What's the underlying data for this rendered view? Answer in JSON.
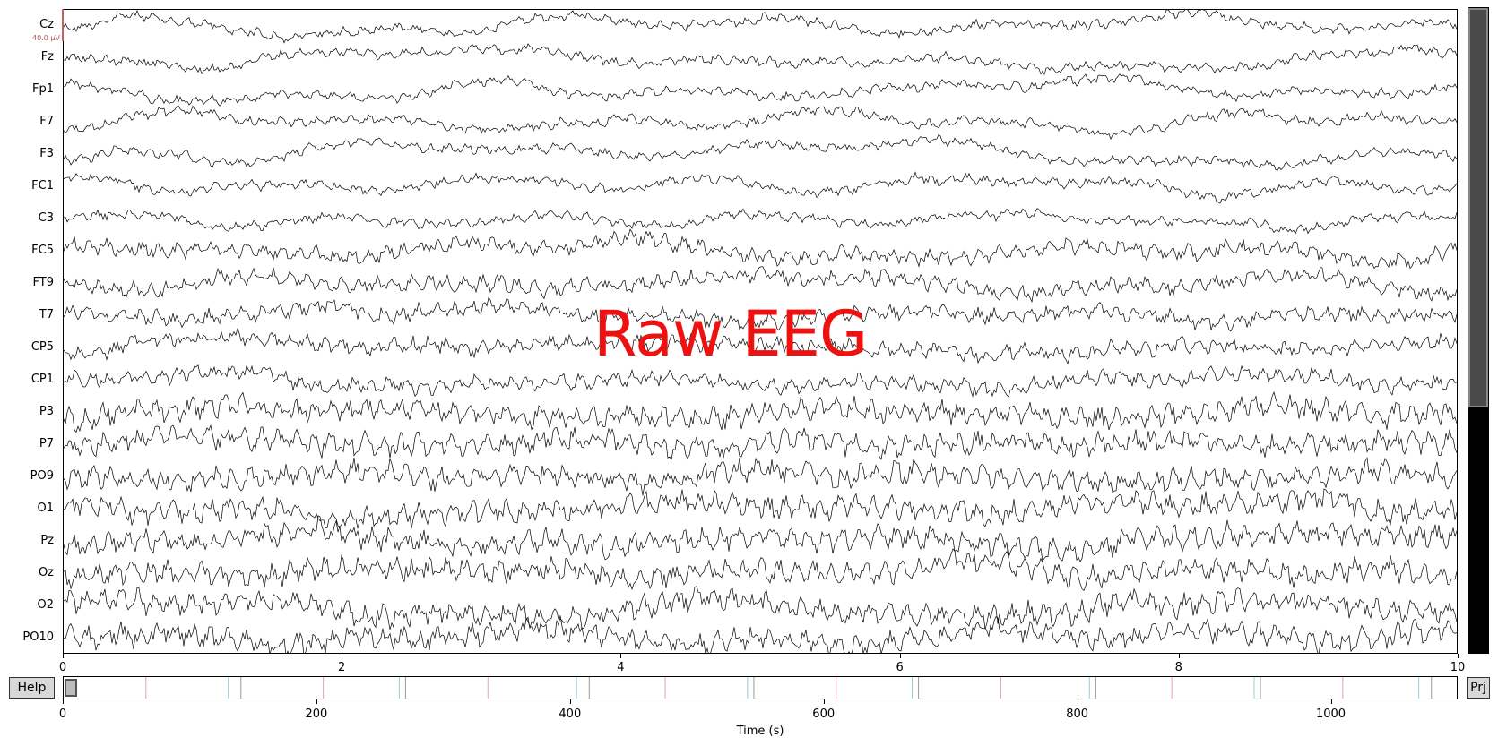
{
  "window": {
    "overlay_text": "Raw EEG"
  },
  "plot": {
    "scale_label": "40.0 µV",
    "xlabel": "Time (s)",
    "trace_color": "#000000",
    "event_colors": [
      "#e8a0b0",
      "#a0c8d8",
      "#999999"
    ]
  },
  "channels": [
    "Cz",
    "Fz",
    "Fp1",
    "F7",
    "F3",
    "FC1",
    "C3",
    "FC5",
    "FT9",
    "T7",
    "CP5",
    "CP1",
    "P3",
    "P7",
    "PO9",
    "O1",
    "Pz",
    "Oz",
    "O2",
    "PO10"
  ],
  "buttons": {
    "help_label": "Help",
    "projector_label": "Prj"
  },
  "chart_data": {
    "type": "line",
    "x_range": [
      0,
      10
    ],
    "x_ticks": [
      "0",
      "2",
      "4",
      "6",
      "8",
      "10"
    ],
    "overview_range": [
      0,
      1100
    ],
    "overview_ticks": [
      "0",
      "200",
      "400",
      "600",
      "800",
      "1000"
    ],
    "xlabel": "Time (s)",
    "visible_window_seconds": [
      0,
      10
    ],
    "event_marks_seconds": [
      65,
      130,
      140,
      205,
      265,
      270,
      335,
      405,
      415,
      475,
      540,
      545,
      610,
      670,
      675,
      740,
      810,
      815,
      875,
      940,
      945,
      1010,
      1070,
      1080
    ]
  },
  "vscroll": {
    "visible_fraction": 0.62
  },
  "icons": {
    "help": "help-button",
    "projector": "projector-button"
  }
}
